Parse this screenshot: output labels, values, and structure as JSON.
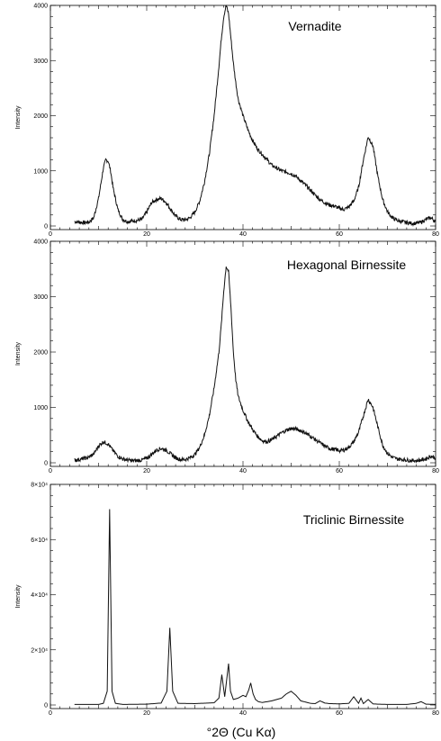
{
  "chart_data": [
    {
      "type": "line",
      "title": "Vernadite",
      "xlabel": "",
      "ylabel": "Intensity",
      "xlim": [
        0,
        80
      ],
      "ylim": [
        0,
        4000
      ],
      "x_ticks": [
        0,
        20,
        40,
        60,
        80
      ],
      "x_tick_labels": [
        "0",
        "20",
        "40",
        "60",
        "80"
      ],
      "y_ticks": [
        0,
        1000,
        2000,
        3000,
        4000
      ],
      "y_tick_labels": [
        "0",
        "1000",
        "2000",
        "3000",
        "4000"
      ],
      "grid": false,
      "series": [
        {
          "x": [
            5,
            6,
            7,
            8,
            9,
            10,
            11,
            11.5,
            12,
            12.5,
            13,
            14,
            15,
            16,
            17,
            18,
            19,
            20,
            21,
            22,
            23,
            24,
            25,
            26,
            27,
            28,
            29,
            30,
            31,
            32,
            33,
            34,
            35,
            35.5,
            36,
            36.5,
            37,
            37.5,
            38,
            38.5,
            39,
            40,
            41,
            42,
            43,
            44,
            45,
            46,
            47,
            48,
            49,
            50,
            51,
            52,
            53,
            54,
            55,
            56,
            57,
            58,
            59,
            60,
            61,
            62,
            63,
            64,
            65,
            66,
            67,
            68,
            69,
            70,
            71,
            72,
            73,
            74,
            75,
            76,
            77,
            78,
            79,
            80
          ],
          "values": [
            80,
            70,
            60,
            70,
            150,
            500,
            1050,
            1200,
            1180,
            1000,
            700,
            300,
            120,
            80,
            90,
            100,
            120,
            250,
            420,
            480,
            500,
            430,
            300,
            180,
            120,
            110,
            150,
            250,
            450,
            800,
            1300,
            2000,
            2900,
            3400,
            3800,
            4000,
            3850,
            3400,
            2950,
            2600,
            2300,
            2000,
            1750,
            1550,
            1400,
            1300,
            1200,
            1100,
            1050,
            1000,
            980,
            950,
            900,
            820,
            740,
            650,
            560,
            480,
            420,
            380,
            360,
            320,
            300,
            350,
            450,
            700,
            1200,
            1620,
            1450,
            900,
            480,
            260,
            150,
            100,
            80,
            60,
            50,
            50,
            70,
            120,
            150,
            80
          ]
        }
      ]
    },
    {
      "type": "line",
      "title": "Hexagonal Birnessite",
      "xlabel": "",
      "ylabel": "Intensity",
      "xlim": [
        0,
        80
      ],
      "ylim": [
        0,
        4000
      ],
      "x_ticks": [
        0,
        20,
        40,
        60,
        80
      ],
      "x_tick_labels": [
        "0",
        "20",
        "40",
        "60",
        "80"
      ],
      "y_ticks": [
        0,
        1000,
        2000,
        3000,
        4000
      ],
      "y_tick_labels": [
        "0",
        "1000",
        "2000",
        "3000",
        "4000"
      ],
      "grid": false,
      "series": [
        {
          "x": [
            5,
            6,
            7,
            8,
            9,
            10,
            11,
            12,
            13,
            14,
            15,
            16,
            17,
            18,
            19,
            20,
            21,
            22,
            23,
            24,
            25,
            26,
            27,
            28,
            29,
            30,
            31,
            32,
            33,
            34,
            35,
            35.5,
            36,
            36.5,
            37,
            37.5,
            38,
            38.5,
            39,
            40,
            41,
            42,
            43,
            44,
            45,
            46,
            47,
            48,
            49,
            50,
            51,
            52,
            53,
            54,
            55,
            56,
            57,
            58,
            59,
            60,
            61,
            62,
            63,
            64,
            65,
            66,
            67,
            68,
            69,
            70,
            71,
            72,
            73,
            74,
            75,
            76,
            77,
            78,
            79,
            80
          ],
          "values": [
            50,
            60,
            80,
            100,
            160,
            300,
            380,
            340,
            220,
            120,
            70,
            50,
            40,
            40,
            50,
            80,
            150,
            230,
            260,
            230,
            160,
            90,
            60,
            60,
            90,
            150,
            280,
            500,
            850,
            1350,
            2000,
            2500,
            3100,
            3550,
            3450,
            2800,
            2000,
            1500,
            1200,
            950,
            750,
            600,
            480,
            400,
            380,
            420,
            480,
            540,
            590,
            620,
            610,
            580,
            540,
            480,
            420,
            360,
            300,
            260,
            240,
            220,
            230,
            280,
            380,
            550,
            850,
            1150,
            1000,
            650,
            320,
            170,
            100,
            70,
            60,
            50,
            40,
            40,
            50,
            70,
            120,
            90
          ]
        }
      ]
    },
    {
      "type": "line",
      "title": "Triclinic Birnessite",
      "xlabel": "°2Θ (Cu Kα)",
      "ylabel": "Intensity",
      "xlim": [
        0,
        80
      ],
      "ylim": [
        0,
        80000
      ],
      "x_ticks": [
        0,
        20,
        40,
        60,
        80
      ],
      "x_tick_labels": [
        "0",
        "20",
        "40",
        "60",
        "80"
      ],
      "y_ticks": [
        0,
        20000,
        40000,
        60000,
        80000
      ],
      "y_tick_labels": [
        "0",
        "2×10⁴",
        "4×10⁴",
        "6×10⁴",
        "8×10⁴"
      ],
      "grid": false,
      "series": [
        {
          "x": [
            5,
            10,
            11,
            11.8,
            12.3,
            12.8,
            13.5,
            15,
            20,
            23,
            24.2,
            24.8,
            25.4,
            26.5,
            30,
            34,
            35,
            35.6,
            36.2,
            36.6,
            37,
            37.4,
            38,
            39,
            40,
            40.6,
            41.2,
            41.6,
            42.1,
            42.6,
            43.2,
            44,
            46,
            48,
            49,
            50,
            51,
            52,
            54,
            55,
            56,
            57,
            58,
            60,
            62,
            63,
            64,
            64.5,
            65,
            66,
            67,
            68,
            70,
            72,
            74,
            76,
            77,
            78,
            80
          ],
          "values": [
            200,
            200,
            600,
            5000,
            71000,
            5000,
            600,
            200,
            300,
            700,
            5000,
            28000,
            5000,
            600,
            500,
            800,
            2500,
            11000,
            3000,
            9000,
            15000,
            5000,
            2000,
            2500,
            3500,
            3000,
            5500,
            8000,
            4000,
            2000,
            1200,
            900,
            1500,
            2500,
            4000,
            5000,
            3500,
            1500,
            600,
            500,
            1500,
            700,
            500,
            400,
            600,
            3000,
            600,
            2500,
            500,
            2000,
            400,
            300,
            200,
            200,
            200,
            600,
            1200,
            300,
            200
          ]
        }
      ]
    }
  ]
}
